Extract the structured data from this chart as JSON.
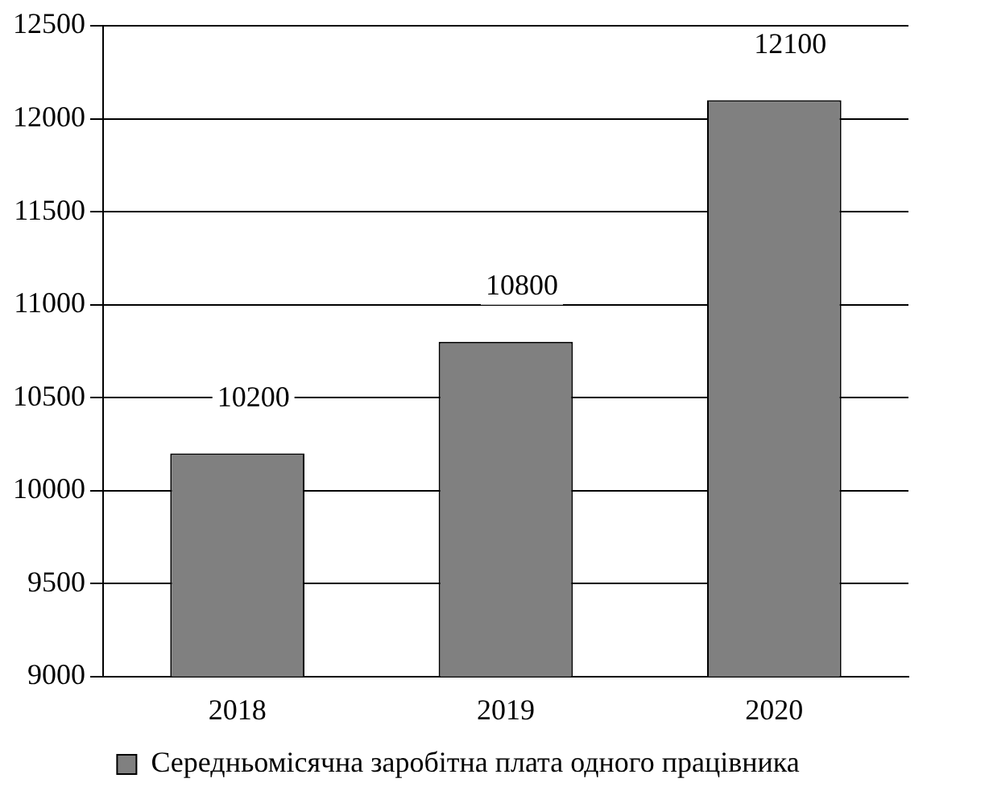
{
  "chart_data": {
    "type": "bar",
    "categories": [
      "2018",
      "2019",
      "2020"
    ],
    "series": [
      {
        "name": "Середньомісячна заробітна плата одного працівника",
        "color": "#808080",
        "values": [
          10200,
          10800,
          12100
        ]
      }
    ],
    "ylim": [
      9000,
      12500
    ],
    "yticks": [
      9000,
      9500,
      10000,
      10500,
      11000,
      11500,
      12000,
      12500
    ],
    "grid": "y",
    "legend": "bottom",
    "data_labels": true
  }
}
